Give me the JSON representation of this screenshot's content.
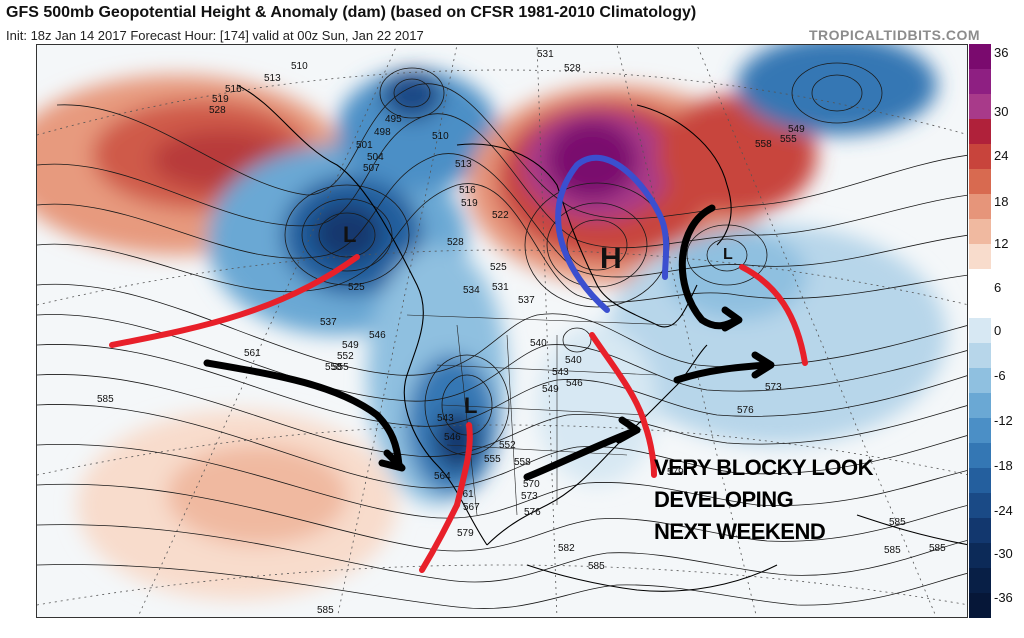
{
  "header": {
    "title": "GFS 500mb Geopotential Height & Anomaly (dam) (based on CFSR 1981-2010 Climatology)",
    "subtitle": "Init: 18z Jan 14 2017   Forecast Hour: [174]   valid at 00z Sun, Jan 22 2017",
    "site": "TROPICALTIDBITS.COM"
  },
  "colorbar": {
    "labels": [
      "36",
      "30",
      "24",
      "18",
      "12",
      "6",
      "0",
      "-6",
      "-12",
      "-18",
      "-24",
      "-30",
      "-36"
    ],
    "colors": [
      "#7a0a6e",
      "#8e1f82",
      "#a83a8a",
      "#b0213a",
      "#c8443c",
      "#d86a50",
      "#e6957a",
      "#f0b9a0",
      "#f8dccc",
      "#ffffff",
      "#ffffff",
      "#d7e8f3",
      "#b7d6ea",
      "#8fc0e0",
      "#6aa8d4",
      "#4b8fc6",
      "#3477b4",
      "#245f9e",
      "#1a4a86",
      "#12376e",
      "#0c2a58",
      "#081f46",
      "#061738"
    ]
  },
  "map": {
    "contour_labels": [
      "510",
      "513",
      "516",
      "519",
      "528",
      "495",
      "498",
      "501",
      "504",
      "507",
      "510",
      "513",
      "516",
      "519",
      "522",
      "525",
      "528",
      "525",
      "531",
      "534",
      "537",
      "531",
      "528",
      "549",
      "555",
      "558",
      "537",
      "546",
      "549",
      "552",
      "555",
      "558",
      "561",
      "585",
      "540",
      "540",
      "543",
      "546",
      "549",
      "543",
      "546",
      "552",
      "555",
      "558",
      "561",
      "564",
      "567",
      "570",
      "573",
      "576",
      "579",
      "582",
      "585",
      "585",
      "573",
      "576",
      "579",
      "585",
      "585",
      "585"
    ],
    "centers": [
      {
        "label": "L",
        "kind": "low"
      },
      {
        "label": "L",
        "kind": "low"
      },
      {
        "label": "L",
        "kind": "low"
      },
      {
        "label": "H",
        "kind": "high"
      }
    ]
  },
  "annotation": {
    "lines": [
      "VERY BLOCKY LOOK",
      "DEVELOPING",
      "NEXT WEEKEND"
    ]
  }
}
